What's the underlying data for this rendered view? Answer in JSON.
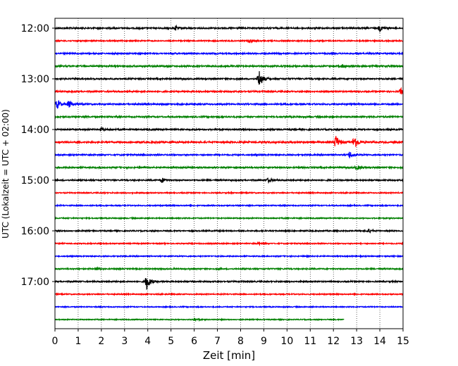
{
  "chart_data": {
    "type": "line",
    "title": "",
    "xlabel": "Zeit  [min]",
    "ylabel": "UTC (Lokalzeit = UTC + 02:00)",
    "xlim": [
      0,
      15
    ],
    "x_ticks": [
      0,
      1,
      2,
      3,
      4,
      5,
      6,
      7,
      8,
      9,
      10,
      11,
      12,
      13,
      14,
      15
    ],
    "y_tick_labels": [
      "12:00",
      "13:00",
      "14:00",
      "15:00",
      "16:00",
      "17:00"
    ],
    "grid": "vertical dotted lines at each minute",
    "trace_interval_min": 15,
    "trace_colors": [
      "#000000",
      "#ff0000",
      "#0000ff",
      "#008000"
    ],
    "traces": [
      {
        "start": "12:00",
        "color": "#000000",
        "amplitude": 0.12,
        "end_min": 15,
        "events": [
          {
            "t": 5.2,
            "amp": 0.35
          },
          {
            "t": 14.0,
            "amp": 0.5
          }
        ]
      },
      {
        "start": "12:15",
        "color": "#ff0000",
        "amplitude": 0.1,
        "end_min": 15,
        "events": [
          {
            "t": 8.4,
            "amp": 0.3
          }
        ]
      },
      {
        "start": "12:30",
        "color": "#0000ff",
        "amplitude": 0.11,
        "end_min": 15,
        "events": []
      },
      {
        "start": "12:45",
        "color": "#008000",
        "amplitude": 0.13,
        "end_min": 15,
        "events": [
          {
            "t": 12.4,
            "amp": 0.3
          }
        ]
      },
      {
        "start": "13:00",
        "color": "#000000",
        "amplitude": 0.12,
        "end_min": 15,
        "events": [
          {
            "t": 8.8,
            "amp": 1.6
          }
        ]
      },
      {
        "start": "13:15",
        "color": "#ff0000",
        "amplitude": 0.12,
        "end_min": 15,
        "events": [
          {
            "t": 14.9,
            "amp": 0.5
          }
        ]
      },
      {
        "start": "13:30",
        "color": "#0000ff",
        "amplitude": 0.12,
        "end_min": 15,
        "events": [
          {
            "t": 0.1,
            "amp": 0.8
          },
          {
            "t": 0.6,
            "amp": 0.6
          }
        ]
      },
      {
        "start": "13:45",
        "color": "#008000",
        "amplitude": 0.12,
        "end_min": 15,
        "events": []
      },
      {
        "start": "14:00",
        "color": "#000000",
        "amplitude": 0.12,
        "end_min": 15,
        "events": [
          {
            "t": 2.0,
            "amp": 0.3
          }
        ]
      },
      {
        "start": "14:15",
        "color": "#ff0000",
        "amplitude": 0.14,
        "end_min": 15,
        "events": [
          {
            "t": 12.1,
            "amp": 1.2
          },
          {
            "t": 12.9,
            "amp": 1.3
          }
        ]
      },
      {
        "start": "14:30",
        "color": "#0000ff",
        "amplitude": 0.11,
        "end_min": 15,
        "events": [
          {
            "t": 12.7,
            "amp": 0.6
          }
        ]
      },
      {
        "start": "14:45",
        "color": "#008000",
        "amplitude": 0.12,
        "end_min": 15,
        "events": [
          {
            "t": 13.0,
            "amp": 0.4
          }
        ]
      },
      {
        "start": "15:00",
        "color": "#000000",
        "amplitude": 0.11,
        "end_min": 15,
        "events": [
          {
            "t": 4.6,
            "amp": 0.45
          },
          {
            "t": 9.2,
            "amp": 0.4
          }
        ]
      },
      {
        "start": "15:15",
        "color": "#ff0000",
        "amplitude": 0.09,
        "end_min": 15,
        "events": []
      },
      {
        "start": "15:30",
        "color": "#0000ff",
        "amplitude": 0.09,
        "end_min": 15,
        "events": []
      },
      {
        "start": "15:45",
        "color": "#008000",
        "amplitude": 0.09,
        "end_min": 15,
        "events": []
      },
      {
        "start": "16:00",
        "color": "#000000",
        "amplitude": 0.1,
        "end_min": 15,
        "events": [
          {
            "t": 13.5,
            "amp": 0.35
          }
        ]
      },
      {
        "start": "16:15",
        "color": "#ff0000",
        "amplitude": 0.09,
        "end_min": 15,
        "events": [
          {
            "t": 8.8,
            "amp": 0.25
          }
        ]
      },
      {
        "start": "16:30",
        "color": "#0000ff",
        "amplitude": 0.09,
        "end_min": 15,
        "events": []
      },
      {
        "start": "16:45",
        "color": "#008000",
        "amplitude": 0.1,
        "end_min": 15,
        "events": [
          {
            "t": 1.8,
            "amp": 0.25
          }
        ]
      },
      {
        "start": "17:00",
        "color": "#000000",
        "amplitude": 0.11,
        "end_min": 15,
        "events": [
          {
            "t": 3.95,
            "amp": 1.4
          }
        ]
      },
      {
        "start": "17:15",
        "color": "#ff0000",
        "amplitude": 0.09,
        "end_min": 15,
        "events": []
      },
      {
        "start": "17:30",
        "color": "#0000ff",
        "amplitude": 0.08,
        "end_min": 15,
        "events": []
      },
      {
        "start": "17:45",
        "color": "#008000",
        "amplitude": 0.08,
        "end_min": 12.45,
        "events": [
          {
            "t": 6.0,
            "amp": 0.25
          }
        ]
      }
    ]
  }
}
